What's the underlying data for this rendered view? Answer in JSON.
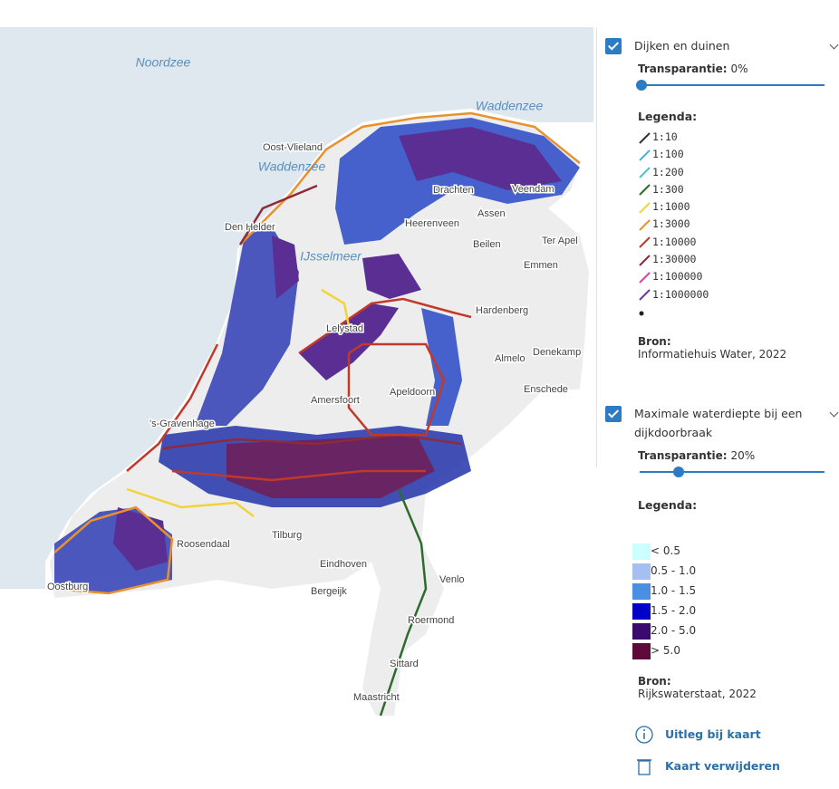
{
  "map": {
    "water_labels": [
      "Noordzee",
      "Waddenzee",
      "IJsselmeer",
      "Waddenzee"
    ],
    "place_labels": [
      "Oost-Vlieland",
      "Den Helder",
      "Drachten",
      "Heerenveen",
      "Veendam",
      "Assen",
      "Beilen",
      "Ter Apel",
      "Emmen",
      "Hardenberg",
      "Lelystad",
      "Almelo",
      "Denekamp",
      "Enschede",
      "Apeldoorn",
      "Amersfoort",
      "'s-Gravenhage",
      "Roosendaal",
      "Tilburg",
      "Eindhoven",
      "Bergeijk",
      "Venlo",
      "Roermond",
      "Sittard",
      "Maastricht",
      "Oostburg"
    ]
  },
  "layers": [
    {
      "title": "Dijken en duinen",
      "checked": true,
      "transparency_title": "Transparantie:",
      "transparency": 0,
      "transparency_text": "0%",
      "legend_title": "Legenda:",
      "legend_style": "line",
      "legend": [
        {
          "label": "1:10",
          "color": "#333333"
        },
        {
          "label": "1:100",
          "color": "#4fb3d9"
        },
        {
          "label": "1:200",
          "color": "#4fc9c0"
        },
        {
          "label": "1:300",
          "color": "#2e6b2e"
        },
        {
          "label": "1:1000",
          "color": "#f2d43a"
        },
        {
          "label": "1:3000",
          "color": "#e8912d"
        },
        {
          "label": "1:10000",
          "color": "#c0392b"
        },
        {
          "label": "1:30000",
          "color": "#8e2a3a"
        },
        {
          "label": "1:100000",
          "color": "#e040a0"
        },
        {
          "label": "1:1000000",
          "color": "#6a3d9a"
        },
        {
          "label": null,
          "color": "#222222"
        }
      ],
      "source_title": "Bron:",
      "source": "Informatiehuis Water, 2022"
    },
    {
      "title": "Maximale waterdiepte bij een dijkdoorbraak",
      "checked": true,
      "transparency_title": "Transparantie:",
      "transparency": 20,
      "transparency_text": "20%",
      "legend_title": "Legenda:",
      "legend_style": "box",
      "legend": [
        {
          "label": "< 0.5",
          "color": "#ccffff"
        },
        {
          "label": "0.5 - 1.0",
          "color": "#a4bff0"
        },
        {
          "label": "1.0 - 1.5",
          "color": "#4a90e2"
        },
        {
          "label": "1.5 - 2.0",
          "color": "#0000c8"
        },
        {
          "label": "2.0 - 5.0",
          "color": "#3a0a6e"
        },
        {
          "label": "> 5.0",
          "color": "#5c0a3a"
        }
      ],
      "source_title": "Bron:",
      "source": "Rijkswaterstaat, 2022"
    }
  ],
  "links": [
    "Uitleg bij kaart",
    "Kaart verwijderen"
  ]
}
